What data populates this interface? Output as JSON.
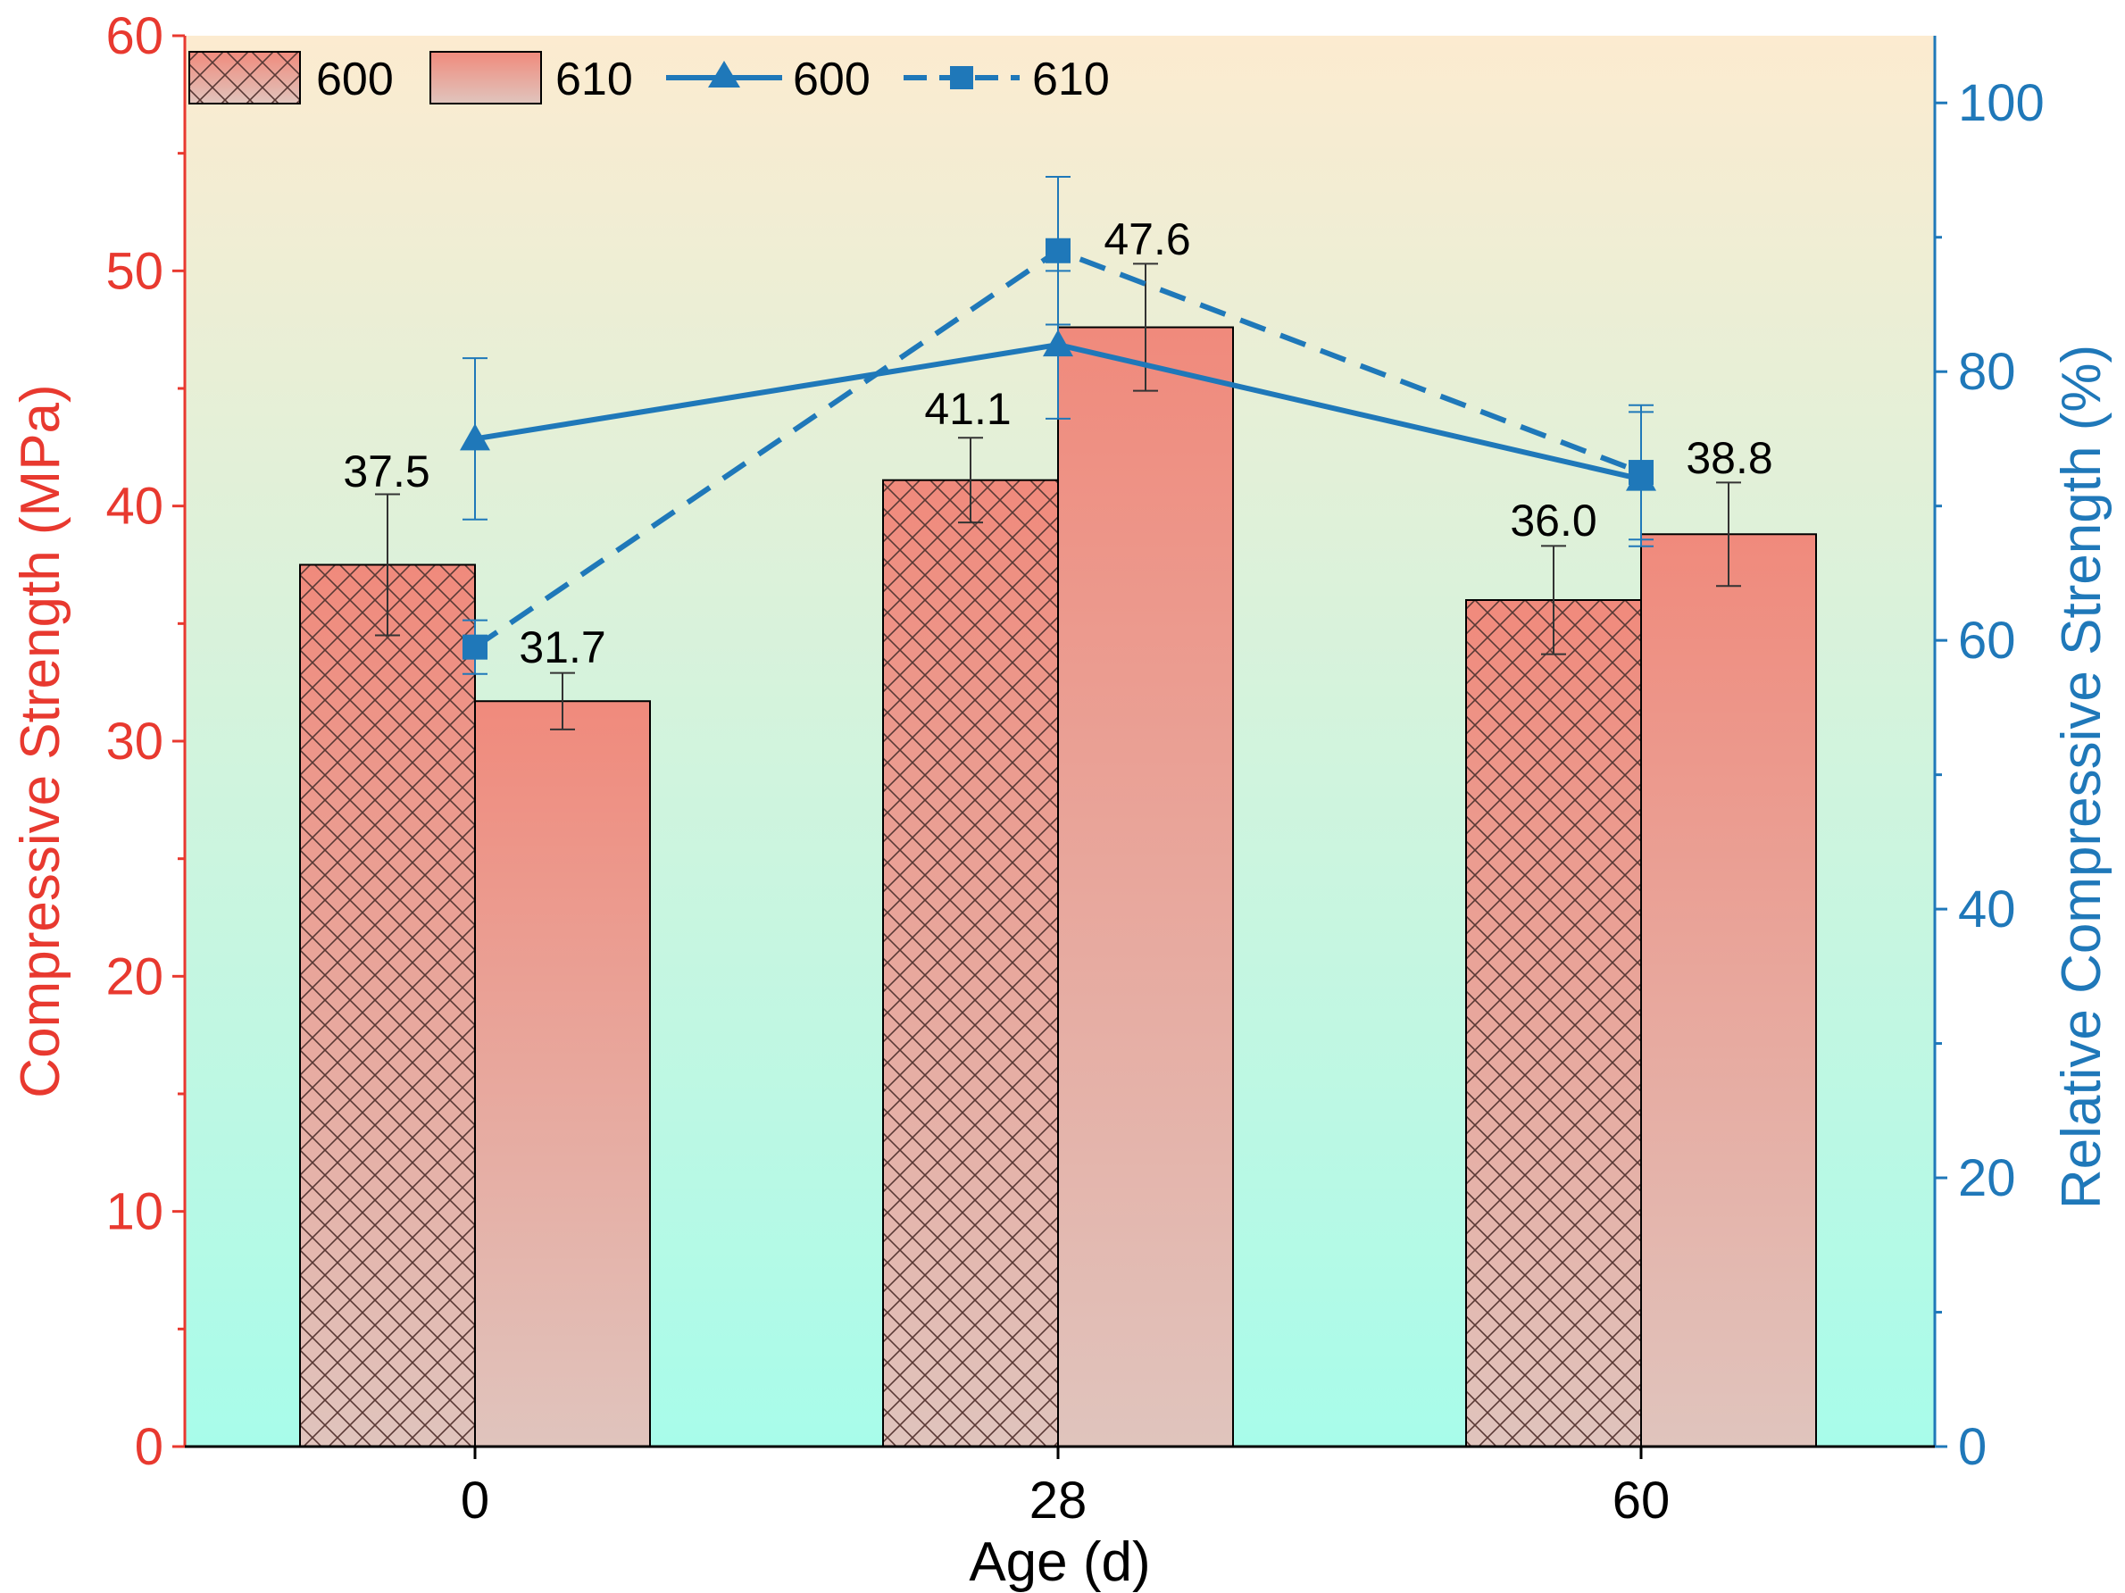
{
  "chart_data": {
    "type": "bar",
    "xlabel": "Age (d)",
    "ylabel": "Compressive Strength (MPa)",
    "y2label": "Relative Compressive Strength (%)",
    "categories": [
      "0",
      "28",
      "60"
    ],
    "ylim": [
      0,
      60
    ],
    "y2lim": [
      0,
      105
    ],
    "yticks": [
      "0",
      "10",
      "20",
      "30",
      "40",
      "50",
      "60"
    ],
    "y2ticks": [
      "0",
      "20",
      "40",
      "60",
      "80",
      "100"
    ],
    "bar_series": [
      {
        "name": "600",
        "pattern": "crosshatch",
        "values": [
          37.5,
          41.1,
          36.0
        ],
        "errors": [
          3.0,
          1.8,
          2.3
        ],
        "labels": [
          "37.5",
          "41.1",
          "36.0"
        ]
      },
      {
        "name": "610",
        "pattern": "solid",
        "values": [
          31.7,
          47.6,
          38.8
        ],
        "errors": [
          1.2,
          2.7,
          2.2
        ],
        "labels": [
          "31.7",
          "47.6",
          "38.8"
        ]
      }
    ],
    "line_series": [
      {
        "name": "600",
        "axis": "right",
        "marker": "triangle",
        "style": "solid",
        "values": [
          75.0,
          82.0,
          72.0
        ],
        "errors": [
          6.0,
          5.5,
          5.0
        ]
      },
      {
        "name": "610",
        "axis": "right",
        "marker": "square",
        "style": "dashed",
        "values": [
          59.5,
          89.0,
          72.5
        ],
        "errors": [
          2.0,
          5.5,
          5.0
        ]
      }
    ],
    "legend_position": "top-left",
    "colors": {
      "left_axis": "#e8392f",
      "right_axis": "#1f78b9",
      "bar_top": "#f08a7c",
      "bar_bottom": "#e0c4bd",
      "line": "#1f78b9",
      "bg_top": "#fcebd0",
      "bg_bottom": "#a8fcea"
    }
  }
}
